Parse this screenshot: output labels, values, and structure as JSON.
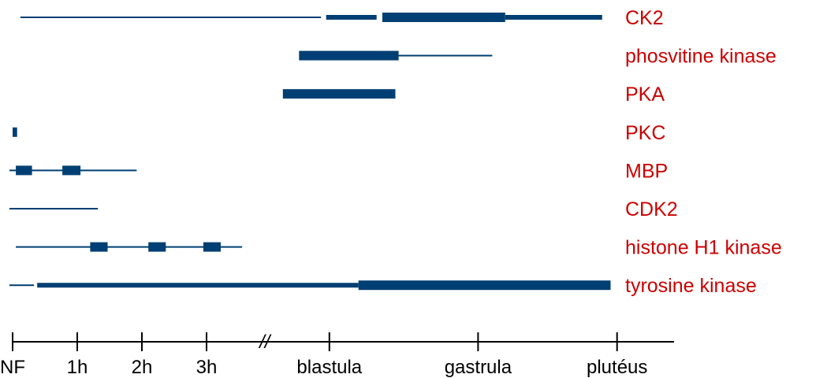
{
  "chart_data": {
    "type": "timeline",
    "bar_color": "#003f73",
    "label_color": "#cc0000",
    "axis": {
      "ticks": [
        {
          "label": "NF",
          "value": 0
        },
        {
          "label": "1h",
          "value": 1
        },
        {
          "label": "2h",
          "value": 2
        },
        {
          "label": "3h",
          "value": 3
        },
        {
          "label": "blastula",
          "value": 4.9
        },
        {
          "label": "gastrula",
          "value": 7.2
        },
        {
          "label": "plutéus",
          "value": 9.35
        }
      ],
      "break_symbol": "//",
      "break_value": 3.9
    },
    "rows": [
      {
        "label": "CK2",
        "segments": [
          {
            "start": 0.12,
            "end": 4.77,
            "weight": "thin"
          },
          {
            "start": 4.85,
            "end": 5.63,
            "weight": "medium"
          },
          {
            "start": 5.72,
            "end": 7.62,
            "weight": "thick"
          },
          {
            "start": 7.62,
            "end": 9.12,
            "weight": "medium"
          }
        ]
      },
      {
        "label": "phosvitine kinase",
        "segments": [
          {
            "start": 4.43,
            "end": 5.97,
            "weight": "thick"
          },
          {
            "start": 5.97,
            "end": 7.42,
            "weight": "thin"
          }
        ]
      },
      {
        "label": "PKA",
        "segments": [
          {
            "start": 4.18,
            "end": 5.92,
            "weight": "thick"
          }
        ]
      },
      {
        "label": "PKC",
        "segments": [
          {
            "start": 0.0,
            "end": 0.07,
            "weight": "thick"
          }
        ]
      },
      {
        "label": "MBP",
        "segments": [
          {
            "start": -0.05,
            "end": 1.92,
            "weight": "thin"
          },
          {
            "start": 0.05,
            "end": 0.3,
            "weight": "thick"
          },
          {
            "start": 0.77,
            "end": 1.05,
            "weight": "thick"
          }
        ]
      },
      {
        "label": "CDK2",
        "segments": [
          {
            "start": -0.05,
            "end": 1.32,
            "weight": "thin"
          }
        ]
      },
      {
        "label": "histone H1 kinase",
        "segments": [
          {
            "start": 0.05,
            "end": 3.55,
            "weight": "thin"
          },
          {
            "start": 1.2,
            "end": 1.47,
            "weight": "thick"
          },
          {
            "start": 2.1,
            "end": 2.37,
            "weight": "thick"
          },
          {
            "start": 2.95,
            "end": 3.22,
            "weight": "thick"
          }
        ]
      },
      {
        "label": "tyrosine kinase",
        "segments": [
          {
            "start": -0.05,
            "end": 0.33,
            "weight": "thin"
          },
          {
            "start": 0.38,
            "end": 5.35,
            "weight": "medium"
          },
          {
            "start": 5.35,
            "end": 9.25,
            "weight": "thick"
          }
        ]
      }
    ]
  }
}
